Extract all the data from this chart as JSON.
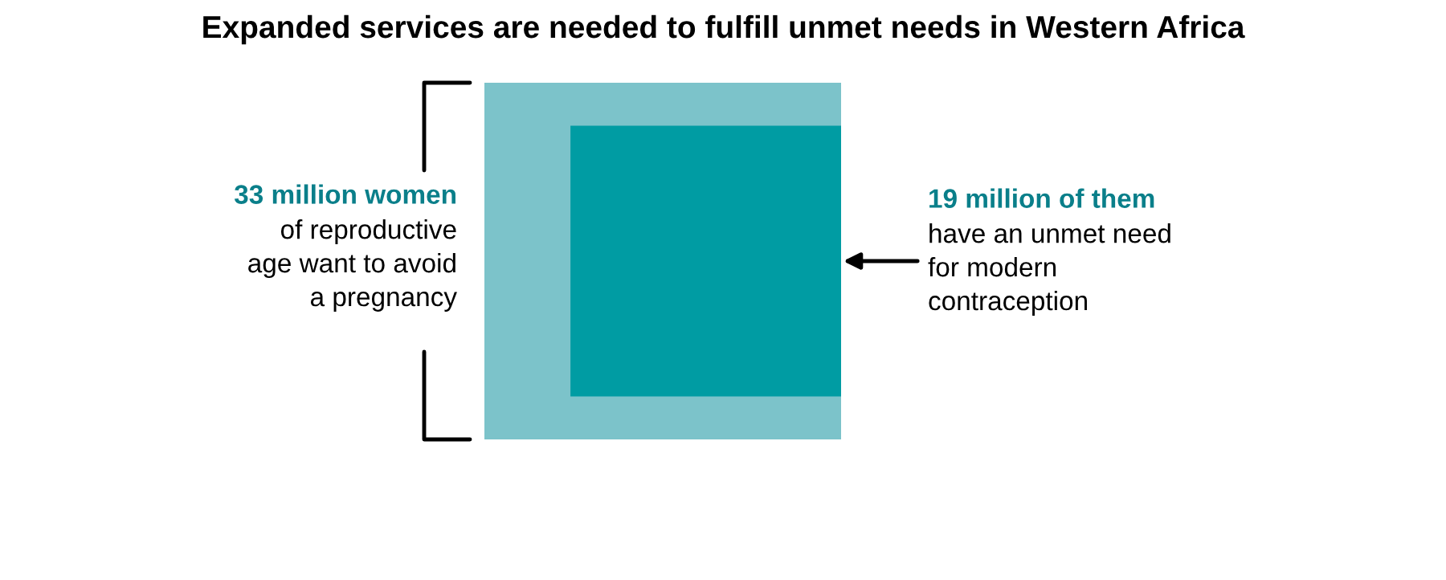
{
  "chart_data": {
    "type": "other",
    "title": "Expanded services are needed to fulfill unmet needs in Western Africa",
    "categories": [
      null,
      null
    ],
    "values": [
      33,
      19
    ],
    "value_labels": [
      "33 million women",
      "19 million of them"
    ],
    "colors": [
      "#7cc3ca",
      "#009ca3"
    ],
    "annotations": [
      "of reproductive\nage want to avoid\na pregnancy",
      "have an unmet need\nfor modern\ncontraception"
    ]
  }
}
